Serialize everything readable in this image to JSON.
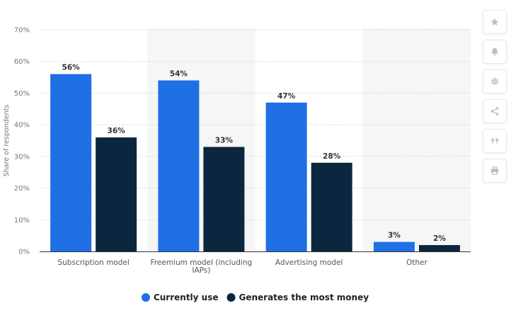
{
  "chart_data": {
    "type": "bar",
    "categories": [
      "Subscription model",
      "Freemium model (including IAPs)",
      "Advertising model",
      "Other"
    ],
    "category_lines": [
      [
        "Subscription model"
      ],
      [
        "Freemium model (including",
        "IAPs)"
      ],
      [
        "Advertising model"
      ],
      [
        "Other"
      ]
    ],
    "series": [
      {
        "name": "Currently use",
        "values": [
          56,
          54,
          47,
          3
        ],
        "color": "#1f6fe5"
      },
      {
        "name": "Generates the most money",
        "values": [
          36,
          33,
          28,
          2
        ],
        "color": "#0c2640"
      }
    ],
    "value_suffix": "%",
    "ylabel": "Share of respondents",
    "ylim": [
      0,
      70
    ],
    "yticks": [
      0,
      10,
      20,
      30,
      40,
      50,
      60,
      70
    ],
    "ytick_labels": [
      "0%",
      "10%",
      "20%",
      "30%",
      "40%",
      "50%",
      "60%",
      "70%"
    ],
    "grid": true,
    "legend_position": "bottom-center",
    "shaded_categories": [
      1,
      3
    ]
  },
  "toolbar": {
    "items": [
      {
        "icon": "star-icon"
      },
      {
        "icon": "bell-icon"
      },
      {
        "icon": "gear-icon"
      },
      {
        "icon": "share-icon"
      },
      {
        "icon": "quote-icon"
      },
      {
        "icon": "print-icon"
      }
    ]
  }
}
